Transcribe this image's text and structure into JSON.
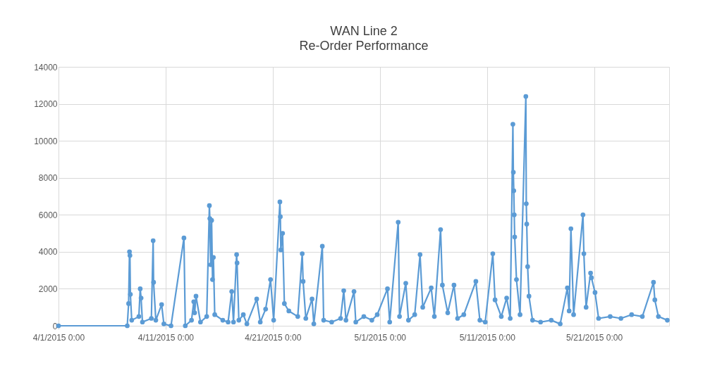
{
  "chart_data": {
    "type": "line",
    "title": "WAN Line 2",
    "subtitle": "Re-Order Performance",
    "xlim": [
      "2015-04-01T00:00",
      "2015-05-28T00:00"
    ],
    "xticks": [
      {
        "value": "2015-04-01T00:00",
        "label": "4/1/2015 0:00"
      },
      {
        "value": "2015-04-11T00:00",
        "label": "4/11/2015 0:00"
      },
      {
        "value": "2015-04-21T00:00",
        "label": "4/21/2015 0:00"
      },
      {
        "value": "2015-05-01T00:00",
        "label": "5/1/2015 0:00"
      },
      {
        "value": "2015-05-11T00:00",
        "label": "5/11/2015 0:00"
      },
      {
        "value": "2015-05-21T00:00",
        "label": "5/21/2015 0:00"
      }
    ],
    "ylim": [
      0,
      14000
    ],
    "yticks": [
      0,
      2000,
      4000,
      6000,
      8000,
      10000,
      12000,
      14000
    ],
    "grid": true,
    "marker": "circle",
    "line_style": "solid",
    "series": [
      {
        "color": "#5b9bd5",
        "x": [
          "2015-04-01T00:00",
          "2015-04-07T10:00",
          "2015-04-07T13:00",
          "2015-04-07T15:00",
          "2015-04-07T16:00",
          "2015-04-07T17:00",
          "2015-04-07T20:00",
          "2015-04-08T12:00",
          "2015-04-08T15:00",
          "2015-04-08T17:00",
          "2015-04-08T20:00",
          "2015-04-09T16:00",
          "2015-04-09T20:00",
          "2015-04-09T21:00",
          "2015-04-10T02:00",
          "2015-04-10T15:00",
          "2015-04-10T20:00",
          "2015-04-11T12:00",
          "2015-04-12T17:00",
          "2015-04-12T20:00",
          "2015-04-13T10:00",
          "2015-04-13T15:00",
          "2015-04-13T17:00",
          "2015-04-13T20:00",
          "2015-04-14T06:00",
          "2015-04-14T20:00",
          "2015-04-15T02:00",
          "2015-04-15T03:00",
          "2015-04-15T05:00",
          "2015-04-15T07:00",
          "2015-04-15T09:00",
          "2015-04-15T11:00",
          "2015-04-15T14:00",
          "2015-04-16T08:00",
          "2015-04-16T20:00",
          "2015-04-17T04:00",
          "2015-04-17T08:00",
          "2015-04-17T15:00",
          "2015-04-17T16:00",
          "2015-04-17T20:00",
          "2015-04-18T06:00",
          "2015-04-18T14:00",
          "2015-04-19T12:00",
          "2015-04-19T20:00",
          "2015-04-20T08:00",
          "2015-04-20T19:00",
          "2015-04-21T02:00",
          "2015-04-21T16:00",
          "2015-04-21T17:00",
          "2015-04-21T18:00",
          "2015-04-21T22:00",
          "2015-04-22T02:00",
          "2015-04-22T12:00",
          "2015-04-23T08:00",
          "2015-04-23T18:00",
          "2015-04-23T20:00",
          "2015-04-24T02:00",
          "2015-04-24T16:00",
          "2015-04-24T20:00",
          "2015-04-25T15:00",
          "2015-04-25T18:00",
          "2015-04-26T12:00",
          "2015-04-27T08:00",
          "2015-04-27T15:00",
          "2015-04-27T20:00",
          "2015-04-28T14:00",
          "2015-04-28T18:00",
          "2015-04-29T12:00",
          "2015-04-30T06:00",
          "2015-04-30T18:00",
          "2015-05-01T17:00",
          "2015-05-01T22:00",
          "2015-05-02T17:00",
          "2015-05-02T20:00",
          "2015-05-03T10:00",
          "2015-05-03T16:00",
          "2015-05-04T06:00",
          "2015-05-04T18:00",
          "2015-05-05T00:00",
          "2015-05-05T19:00",
          "2015-05-06T02:00",
          "2015-05-06T16:00",
          "2015-05-06T20:00",
          "2015-05-07T08:00",
          "2015-05-07T22:00",
          "2015-05-08T06:00",
          "2015-05-08T20:00",
          "2015-05-09T23:00",
          "2015-05-10T08:00",
          "2015-05-10T20:00",
          "2015-05-11T13:00",
          "2015-05-11T18:00",
          "2015-05-12T08:00",
          "2015-05-12T20:00",
          "2015-05-13T04:00",
          "2015-05-13T10:00",
          "2015-05-13T11:00",
          "2015-05-13T12:00",
          "2015-05-13T13:00",
          "2015-05-13T14:00",
          "2015-05-13T18:00",
          "2015-05-14T02:00",
          "2015-05-14T15:00",
          "2015-05-14T16:00",
          "2015-05-14T17:00",
          "2015-05-14T19:00",
          "2015-05-14T22:00",
          "2015-05-15T06:00",
          "2015-05-16T00:00",
          "2015-05-17T00:00",
          "2015-05-17T20:00",
          "2015-05-18T12:00",
          "2015-05-18T16:00",
          "2015-05-18T20:00",
          "2015-05-19T02:00",
          "2015-05-19T23:00",
          "2015-05-20T01:00",
          "2015-05-20T06:00",
          "2015-05-20T16:00",
          "2015-05-20T18:00",
          "2015-05-21T02:00",
          "2015-05-21T10:00",
          "2015-05-22T12:00",
          "2015-05-23T12:00",
          "2015-05-24T12:00",
          "2015-05-25T12:00",
          "2015-05-26T13:00",
          "2015-05-26T16:00",
          "2015-05-27T00:00",
          "2015-05-27T20:00"
        ],
        "values": [
          0,
          0,
          1200,
          4000,
          3800,
          1700,
          300,
          500,
          2000,
          1500,
          200,
          400,
          4600,
          2350,
          300,
          1150,
          100,
          0,
          4750,
          0,
          300,
          1300,
          700,
          1600,
          200,
          500,
          6500,
          5800,
          3300,
          5700,
          2500,
          3700,
          600,
          300,
          200,
          1850,
          200,
          3850,
          3400,
          300,
          600,
          100,
          1450,
          200,
          900,
          2500,
          300,
          6700,
          5900,
          4100,
          5000,
          1200,
          800,
          500,
          3900,
          2400,
          400,
          1450,
          100,
          4300,
          300,
          200,
          400,
          1900,
          300,
          1850,
          200,
          500,
          300,
          600,
          2000,
          200,
          5600,
          500,
          2300,
          300,
          600,
          3850,
          1000,
          2050,
          500,
          5200,
          2200,
          700,
          2200,
          400,
          600,
          2400,
          300,
          200,
          3900,
          1400,
          500,
          1500,
          400,
          10900,
          8300,
          7300,
          6000,
          4800,
          2500,
          600,
          12400,
          6600,
          5500,
          3200,
          1600,
          300,
          200,
          300,
          100,
          2050,
          800,
          5250,
          600,
          6000,
          3900,
          1000,
          2850,
          2600,
          1800,
          400,
          500,
          400,
          600,
          500,
          2350,
          1400,
          500,
          300
        ]
      }
    ]
  }
}
